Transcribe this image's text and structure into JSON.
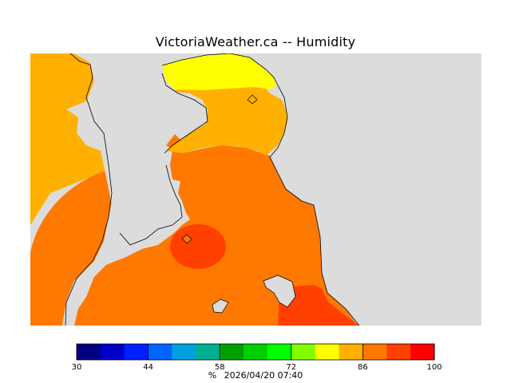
{
  "title": "VictoriaWeather.ca -- Humidity",
  "legend": {
    "min": 30,
    "max": 100,
    "colors": [
      "#000080",
      "#0000c8",
      "#0020ff",
      "#0064ff",
      "#00a0e0",
      "#00b090",
      "#00a000",
      "#00d000",
      "#00ff00",
      "#80ff00",
      "#ffff00",
      "#ffb000",
      "#ff7800",
      "#ff4000",
      "#ff0000"
    ],
    "ticks": [
      "30",
      "44",
      "58",
      "72",
      "86",
      "100"
    ]
  },
  "footer": {
    "unit": "%",
    "timestamp": "2026/04/20 07:40"
  },
  "map_colors": {
    "land_background": "#dcdcdc",
    "humidity_80_85": "#ffb000",
    "humidity_85_90": "#ff7800",
    "humidity_90_95": "#ff4000",
    "humidity_75_80": "#ffff00"
  }
}
